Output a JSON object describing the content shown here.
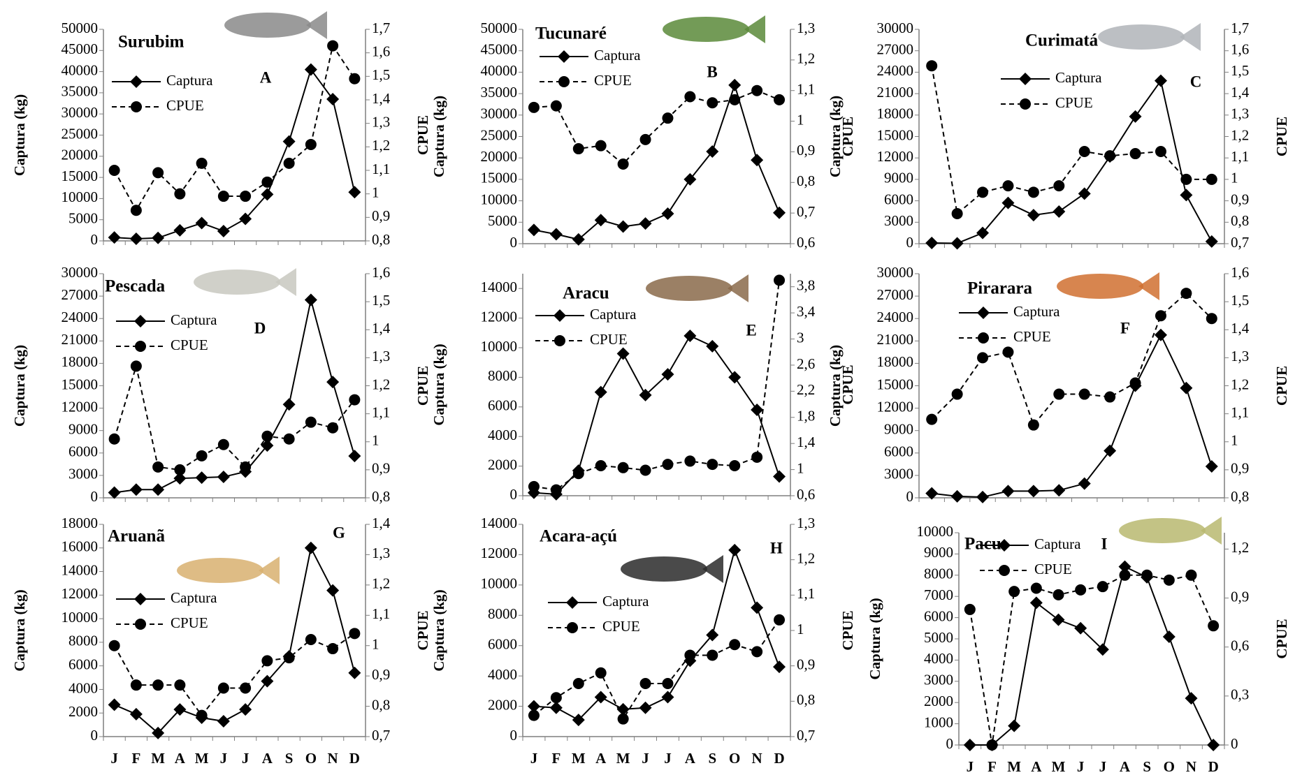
{
  "chart_data": [
    {
      "type": "line",
      "title": "Surubim",
      "annotation": "A",
      "ylabel": "Captura (kg)",
      "y2label": "CPUE",
      "ylim": [
        0,
        50000
      ],
      "yticks": [
        0,
        5000,
        10000,
        15000,
        20000,
        25000,
        30000,
        35000,
        40000,
        45000,
        50000
      ],
      "y2lim": [
        0.8,
        1.7
      ],
      "y2ticks": [
        {
          "value": 0.8,
          "label": "0,8"
        },
        {
          "value": 0.9,
          "label": "0,9"
        },
        1,
        {
          "value": 1.1,
          "label": "1,1"
        },
        {
          "value": 1.2,
          "label": "1,2"
        },
        {
          "value": 1.3,
          "label": "1,3"
        },
        {
          "value": 1.4,
          "label": "1,4"
        },
        {
          "value": 1.5,
          "label": "1,5"
        },
        {
          "value": 1.6,
          "label": "1,6"
        },
        {
          "value": 1.7,
          "label": "1,7"
        }
      ],
      "series": [
        {
          "name": "Captura",
          "color": "#000000",
          "marker": "diamond",
          "line_style": "solid",
          "values": [
            800,
            500,
            700,
            2500,
            4200,
            2300,
            5200,
            11000,
            23500,
            40500,
            33500,
            11500
          ]
        },
        {
          "name": "CPUE",
          "color": "#000000",
          "marker": "circle",
          "line_style": "dashed",
          "axis": "y2",
          "values": [
            1.1,
            0.93,
            1.09,
            1.0,
            1.13,
            0.99,
            0.99,
            1.05,
            1.13,
            1.21,
            1.63,
            1.49
          ]
        }
      ]
    },
    {
      "type": "line",
      "title": "Tucunaré",
      "annotation": "B",
      "ylabel": "Captura (kg)",
      "y2label": "CPUE",
      "ylim": [
        0,
        50000
      ],
      "yticks": [
        0,
        5000,
        10000,
        15000,
        20000,
        25000,
        30000,
        35000,
        40000,
        45000,
        50000
      ],
      "y2lim": [
        0.6,
        1.3
      ],
      "y2ticks": [
        {
          "value": 0.6,
          "label": "0,6"
        },
        {
          "value": 0.7,
          "label": "0,7"
        },
        {
          "value": 0.8,
          "label": "0,8"
        },
        {
          "value": 0.9,
          "label": "0,9"
        },
        1,
        {
          "value": 1.1,
          "label": "1,1"
        },
        {
          "value": 1.2,
          "label": "1,2"
        },
        {
          "value": 1.3,
          "label": "1,3"
        }
      ],
      "series": [
        {
          "name": "Captura",
          "color": "#000000",
          "marker": "diamond",
          "line_style": "solid",
          "values": [
            3200,
            2200,
            1000,
            5500,
            4000,
            4700,
            7000,
            15000,
            21500,
            37000,
            19500,
            7200
          ]
        },
        {
          "name": "CPUE",
          "color": "#000000",
          "marker": "circle",
          "line_style": "dashed",
          "axis": "y2",
          "values": [
            1.045,
            1.05,
            0.91,
            0.92,
            0.86,
            0.94,
            1.01,
            1.08,
            1.06,
            1.07,
            1.1,
            1.07
          ]
        }
      ]
    },
    {
      "type": "line",
      "title": "Curimatá",
      "annotation": "C",
      "ylabel": "Captura (kg)",
      "y2label": "CPUE",
      "ylim": [
        0,
        30000
      ],
      "yticks": [
        0,
        3000,
        6000,
        9000,
        12000,
        15000,
        18000,
        21000,
        24000,
        27000,
        30000
      ],
      "y2lim": [
        0.7,
        1.7
      ],
      "y2ticks": [
        {
          "value": 0.7,
          "label": "0,7"
        },
        {
          "value": 0.8,
          "label": "0,8"
        },
        {
          "value": 0.9,
          "label": "0,9"
        },
        1,
        {
          "value": 1.1,
          "label": "1,1"
        },
        {
          "value": 1.2,
          "label": "1,2"
        },
        {
          "value": 1.3,
          "label": "1,3"
        },
        {
          "value": 1.4,
          "label": "1,4"
        },
        {
          "value": 1.5,
          "label": "1,5"
        },
        {
          "value": 1.6,
          "label": "1,6"
        },
        {
          "value": 1.7,
          "label": "1,7"
        }
      ],
      "series": [
        {
          "name": "Captura",
          "color": "#000000",
          "marker": "diamond",
          "line_style": "solid",
          "values": [
            100,
            50,
            1500,
            5700,
            4000,
            4500,
            7000,
            12200,
            17800,
            22800,
            6800,
            300
          ]
        },
        {
          "name": "CPUE",
          "color": "#000000",
          "marker": "circle",
          "line_style": "dashed",
          "axis": "y2",
          "values": [
            1.53,
            0.84,
            0.94,
            0.97,
            0.94,
            0.97,
            1.13,
            1.11,
            1.12,
            1.13,
            1.0,
            1.0
          ]
        }
      ]
    },
    {
      "type": "line",
      "title": "Pescada",
      "annotation": "D",
      "ylabel": "Captura (kg)",
      "y2label": "CPUE",
      "ylim": [
        0,
        30000
      ],
      "yticks": [
        0,
        3000,
        6000,
        9000,
        12000,
        15000,
        18000,
        21000,
        24000,
        27000,
        30000
      ],
      "y2lim": [
        0.8,
        1.6
      ],
      "y2ticks": [
        {
          "value": 0.8,
          "label": "0,8"
        },
        {
          "value": 0.9,
          "label": "0,9"
        },
        1,
        {
          "value": 1.1,
          "label": "1,1"
        },
        {
          "value": 1.2,
          "label": "1,2"
        },
        {
          "value": 1.3,
          "label": "1,3"
        },
        {
          "value": 1.4,
          "label": "1,4"
        },
        {
          "value": 1.5,
          "label": "1,5"
        },
        {
          "value": 1.6,
          "label": "1,6"
        }
      ],
      "series": [
        {
          "name": "Captura",
          "color": "#000000",
          "marker": "diamond",
          "line_style": "solid",
          "values": [
            700,
            1100,
            1100,
            2600,
            2700,
            2800,
            3500,
            7000,
            12500,
            26500,
            15500,
            5600
          ]
        },
        {
          "name": "CPUE",
          "color": "#000000",
          "marker": "circle",
          "line_style": "dashed",
          "axis": "y2",
          "values": [
            1.01,
            1.27,
            0.91,
            0.9,
            0.95,
            0.99,
            0.91,
            1.02,
            1.01,
            1.07,
            1.05,
            1.15
          ]
        }
      ]
    },
    {
      "type": "line",
      "title": "Aracu",
      "annotation": "E",
      "ylabel": "Captura (kg)",
      "y2label": "CPUE",
      "ylim": [
        0,
        15000
      ],
      "yticks": [
        0,
        2000,
        4000,
        6000,
        8000,
        10000,
        12000,
        14000
      ],
      "y2lim": [
        0.6,
        4.0
      ],
      "y2ticks": [
        {
          "value": 0.6,
          "label": "0,6"
        },
        1,
        {
          "value": 1.4,
          "label": "1,4"
        },
        {
          "value": 1.8,
          "label": "1,8"
        },
        {
          "value": 2.2,
          "label": "2,2"
        },
        {
          "value": 2.6,
          "label": "2,6"
        },
        3,
        {
          "value": 3.4,
          "label": "3,4"
        },
        {
          "value": 3.8,
          "label": "3,8"
        }
      ],
      "series": [
        {
          "name": "Captura",
          "color": "#000000",
          "marker": "diamond",
          "line_style": "solid",
          "values": [
            200,
            100,
            1700,
            7000,
            9600,
            6800,
            8200,
            10800,
            10100,
            8000,
            5800,
            1300
          ]
        },
        {
          "name": "CPUE",
          "color": "#000000",
          "marker": "circle",
          "line_style": "dashed",
          "axis": "y2",
          "values": [
            0.74,
            0.69,
            0.94,
            1.06,
            1.03,
            0.99,
            1.08,
            1.13,
            1.08,
            1.06,
            1.19,
            3.9
          ]
        }
      ]
    },
    {
      "type": "line",
      "title": "Pirarara",
      "annotation": "F",
      "ylabel": "Captura (kg)",
      "y2label": "CPUE",
      "ylim": [
        0,
        30000
      ],
      "yticks": [
        0,
        3000,
        6000,
        9000,
        12000,
        15000,
        18000,
        21000,
        24000,
        27000,
        30000
      ],
      "y2lim": [
        0.8,
        1.6
      ],
      "y2ticks": [
        {
          "value": 0.8,
          "label": "0,8"
        },
        {
          "value": 0.9,
          "label": "0,9"
        },
        1,
        {
          "value": 1.1,
          "label": "1,1"
        },
        {
          "value": 1.2,
          "label": "1,2"
        },
        {
          "value": 1.3,
          "label": "1,3"
        },
        {
          "value": 1.4,
          "label": "1,4"
        },
        {
          "value": 1.5,
          "label": "1,5"
        },
        {
          "value": 1.6,
          "label": "1,6"
        }
      ],
      "series": [
        {
          "name": "Captura",
          "color": "#000000",
          "marker": "diamond",
          "line_style": "solid",
          "values": [
            600,
            200,
            100,
            900,
            900,
            1000,
            1900,
            6300,
            15000,
            21800,
            14700,
            4200
          ]
        },
        {
          "name": "CPUE",
          "color": "#000000",
          "marker": "circle",
          "line_style": "dashed",
          "axis": "y2",
          "values": [
            1.08,
            1.17,
            1.3,
            1.32,
            1.06,
            1.17,
            1.17,
            1.16,
            1.21,
            1.45,
            1.53,
            1.44
          ]
        }
      ]
    },
    {
      "type": "line",
      "title": "Aruanã",
      "annotation": "G",
      "ylabel": "Captura (kg)",
      "y2label": "CPUE",
      "categories": [
        "J",
        "F",
        "M",
        "A",
        "M",
        "J",
        "J",
        "A",
        "S",
        "O",
        "N",
        "D"
      ],
      "ylim": [
        0,
        18000
      ],
      "yticks": [
        0,
        2000,
        4000,
        6000,
        8000,
        10000,
        12000,
        14000,
        16000,
        18000
      ],
      "y2lim": [
        0.7,
        1.4
      ],
      "y2ticks": [
        {
          "value": 0.7,
          "label": "0,7"
        },
        {
          "value": 0.8,
          "label": "0,8"
        },
        {
          "value": 0.9,
          "label": "0,9"
        },
        1,
        {
          "value": 1.1,
          "label": "1,1"
        },
        {
          "value": 1.2,
          "label": "1,2"
        },
        {
          "value": 1.3,
          "label": "1,3"
        },
        {
          "value": 1.4,
          "label": "1,4"
        }
      ],
      "series": [
        {
          "name": "Captura",
          "color": "#000000",
          "marker": "diamond",
          "line_style": "solid",
          "values": [
            2700,
            1900,
            300,
            2300,
            1600,
            1300,
            2300,
            4700,
            6800,
            16000,
            12400,
            5400
          ]
        },
        {
          "name": "CPUE",
          "color": "#000000",
          "marker": "circle",
          "line_style": "dashed",
          "axis": "y2",
          "values": [
            1.0,
            0.87,
            0.87,
            0.87,
            0.77,
            0.86,
            0.86,
            0.95,
            0.96,
            1.02,
            0.99,
            1.04
          ]
        }
      ]
    },
    {
      "type": "line",
      "title": "Acara-açú",
      "annotation": "H",
      "ylabel": "Captura (kg)",
      "y2label": "CPUE",
      "categories": [
        "J",
        "F",
        "M",
        "A",
        "M",
        "J",
        "J",
        "A",
        "S",
        "O",
        "N",
        "D"
      ],
      "ylim": [
        0,
        14000
      ],
      "yticks": [
        0,
        2000,
        4000,
        6000,
        8000,
        10000,
        12000,
        14000
      ],
      "y2lim": [
        0.7,
        1.3
      ],
      "y2ticks": [
        {
          "value": 0.7,
          "label": "0,7"
        },
        {
          "value": 0.8,
          "label": "0,8"
        },
        {
          "value": 0.9,
          "label": "0,9"
        },
        1,
        {
          "value": 1.1,
          "label": "1,1"
        },
        {
          "value": 1.2,
          "label": "1,2"
        },
        {
          "value": 1.3,
          "label": "1,3"
        }
      ],
      "series": [
        {
          "name": "Captura",
          "color": "#000000",
          "marker": "diamond",
          "line_style": "solid",
          "values": [
            2000,
            1900,
            1100,
            2600,
            1800,
            1900,
            2600,
            5000,
            6700,
            12300,
            8500,
            4600
          ]
        },
        {
          "name": "CPUE",
          "color": "#000000",
          "marker": "circle",
          "line_style": "dashed",
          "axis": "y2",
          "values": [
            0.76,
            0.81,
            0.85,
            0.88,
            0.75,
            0.85,
            0.85,
            0.93,
            0.93,
            0.96,
            0.94,
            1.03
          ]
        }
      ]
    },
    {
      "type": "line",
      "title": "Pacu",
      "annotation": "I",
      "ylabel": "Captura (kg)",
      "y2label": "CPUE",
      "categories": [
        "J",
        "F",
        "M",
        "A",
        "M",
        "J",
        "J",
        "A",
        "S",
        "O",
        "N",
        "D"
      ],
      "ylim": [
        0,
        10000
      ],
      "yticks": [
        0,
        1000,
        2000,
        3000,
        4000,
        5000,
        6000,
        7000,
        8000,
        9000,
        10000
      ],
      "y2lim": [
        0,
        1.3
      ],
      "y2ticks": [
        0,
        {
          "value": 0.3,
          "label": "0,3"
        },
        {
          "value": 0.6,
          "label": "0,6"
        },
        {
          "value": 0.9,
          "label": "0,9"
        },
        {
          "value": 1.2,
          "label": "1,2"
        }
      ],
      "series": [
        {
          "name": "Captura",
          "color": "#000000",
          "marker": "diamond",
          "line_style": "solid",
          "values": [
            0,
            0,
            900,
            6700,
            5900,
            5500,
            4500,
            8400,
            7900,
            5100,
            2200,
            0
          ]
        },
        {
          "name": "CPUE",
          "color": "#000000",
          "marker": "circle",
          "line_style": "dashed",
          "axis": "y2",
          "values": [
            0.83,
            0,
            0.94,
            0.96,
            0.92,
            0.95,
            0.97,
            1.04,
            1.04,
            1.01,
            1.04,
            0.73
          ]
        }
      ]
    }
  ]
}
